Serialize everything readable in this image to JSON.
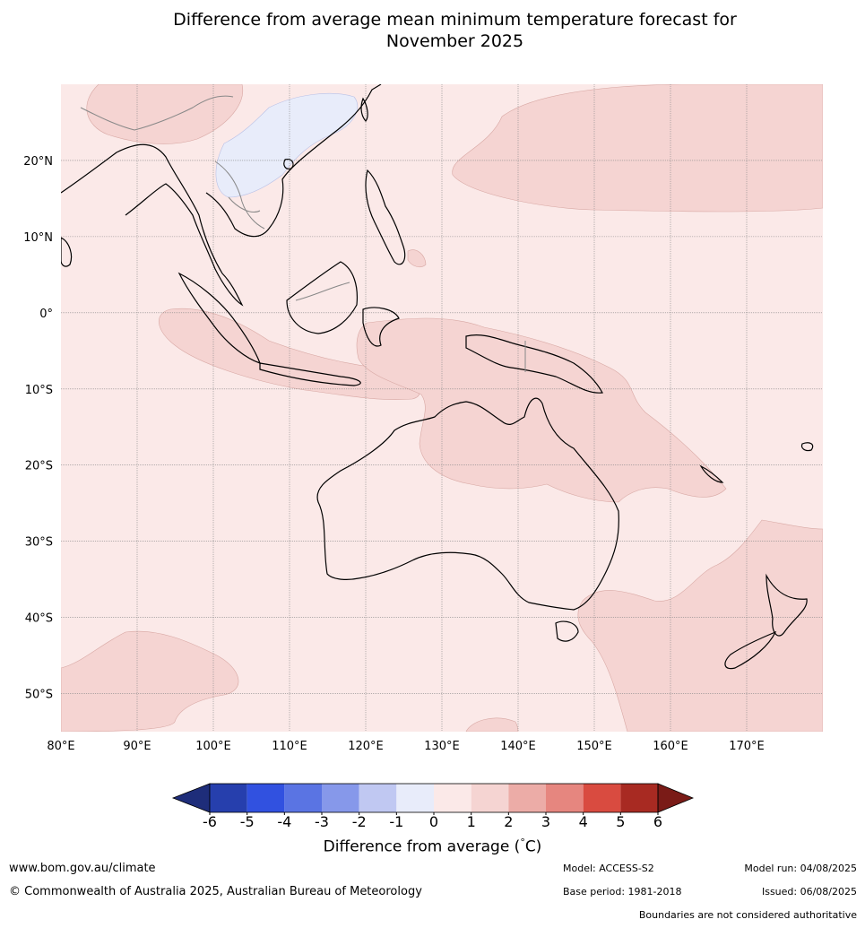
{
  "title": {
    "line1": "Difference from average mean minimum temperature forecast for",
    "line2": "November 2025"
  },
  "map": {
    "lon_range": [
      80,
      180
    ],
    "lat_range": [
      -55,
      30
    ],
    "lat_ticks": [
      {
        "value": 20,
        "label": "20°N"
      },
      {
        "value": 10,
        "label": "10°N"
      },
      {
        "value": 0,
        "label": "0°"
      },
      {
        "value": -10,
        "label": "10°S"
      },
      {
        "value": -20,
        "label": "20°S"
      },
      {
        "value": -30,
        "label": "30°S"
      },
      {
        "value": -40,
        "label": "40°S"
      },
      {
        "value": -50,
        "label": "50°S"
      }
    ],
    "lon_ticks": [
      {
        "value": 80,
        "label": "80°E"
      },
      {
        "value": 90,
        "label": "90°E"
      },
      {
        "value": 100,
        "label": "100°E"
      },
      {
        "value": 110,
        "label": "110°E"
      },
      {
        "value": 120,
        "label": "120°E"
      },
      {
        "value": 130,
        "label": "130°E"
      },
      {
        "value": 140,
        "label": "140°E"
      },
      {
        "value": 150,
        "label": "150°E"
      },
      {
        "value": 160,
        "label": "160°E"
      },
      {
        "value": 170,
        "label": "170°E"
      }
    ],
    "background_color": "#fbe9e8",
    "anomaly_1_2_color": "#f5d4d2",
    "anomaly_m1_0_color": "#e8ecfa"
  },
  "colorbar": {
    "ticks": [
      "-6",
      "-5",
      "-4",
      "-3",
      "-2",
      "-1",
      "0",
      "1",
      "2",
      "3",
      "4",
      "5",
      "6"
    ],
    "colors": [
      "#263fad",
      "#3151e0",
      "#5a74e3",
      "#8698ea",
      "#c0c8f2",
      "#e8ecfa",
      "#fbe9e8",
      "#f5d4d2",
      "#ecaca7",
      "#e6867f",
      "#d94b40",
      "#a82a22"
    ],
    "under_color": "#1e2d7a",
    "over_color": "#7a1b17",
    "label": "Difference from average (",
    "label_unit": "C)",
    "label_degree": "°"
  },
  "footer": {
    "website": "www.bom.gov.au/climate",
    "copyright": "© Commonwealth of Australia 2025, Australian Bureau of Meteorology",
    "model": "Model: ACCESS-S2",
    "model_run": "Model run: 04/08/2025",
    "base_period": "Base period: 1981-2018",
    "issued": "Issued: 06/08/2025",
    "disclaimer": "Boundaries are not considered authoritative"
  }
}
